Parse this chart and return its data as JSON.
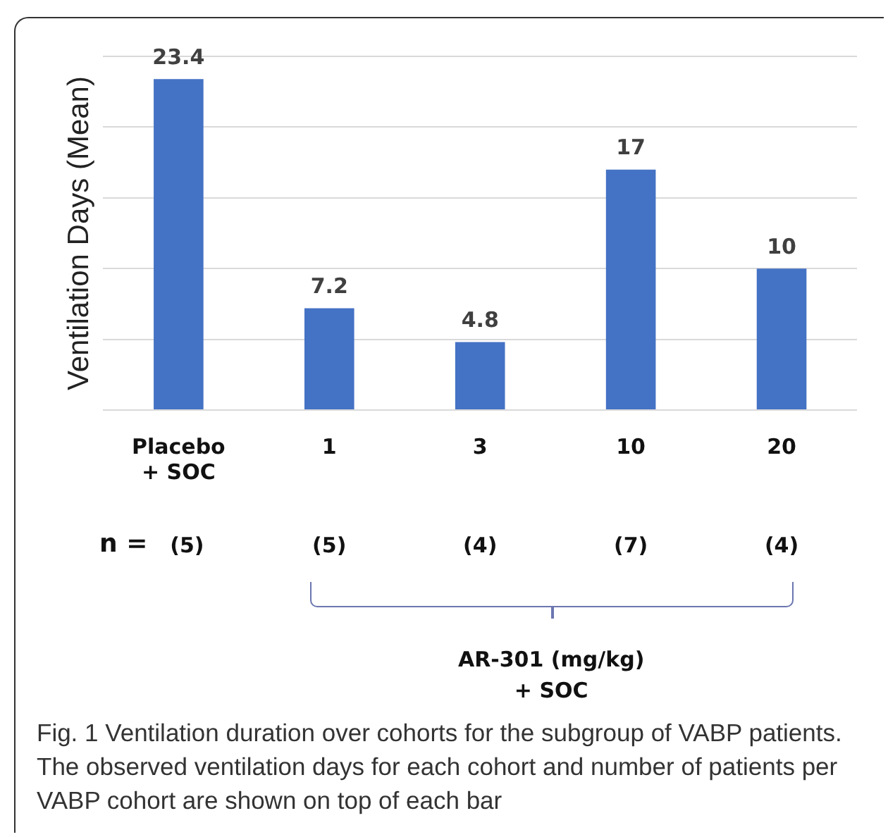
{
  "chart_data": {
    "type": "bar",
    "ylabel": "Ventilation Days (Mean)",
    "categories": [
      "Placebo\n+ SOC",
      "1",
      "3",
      "10",
      "20"
    ],
    "values": [
      23.4,
      7.2,
      4.8,
      17,
      10
    ],
    "color": "#4472c4",
    "ylim": [
      0,
      25
    ],
    "yticks": [
      {
        "value": 0,
        "label": null
      },
      {
        "value": 5,
        "label": null
      },
      {
        "value": 10,
        "label": null
      },
      {
        "value": 15,
        "label": null
      },
      {
        "value": 20,
        "label": null
      },
      {
        "value": 25,
        "label": null
      }
    ],
    "grid": "y",
    "tick_labels": "x",
    "data_labels": true,
    "legend": false,
    "annotations": [
      "n =",
      "(5)",
      "(5)",
      "(4)",
      "(7)",
      "(4)",
      "AR-301 (mg/kg)\n+ SOC",
      "Fig. 1  Ventilation duration over cohorts for the subgroup of VABP patients. The observed ventilation days for each cohort and number of patients per VABP cohort are shown on top of each bar"
    ]
  }
}
